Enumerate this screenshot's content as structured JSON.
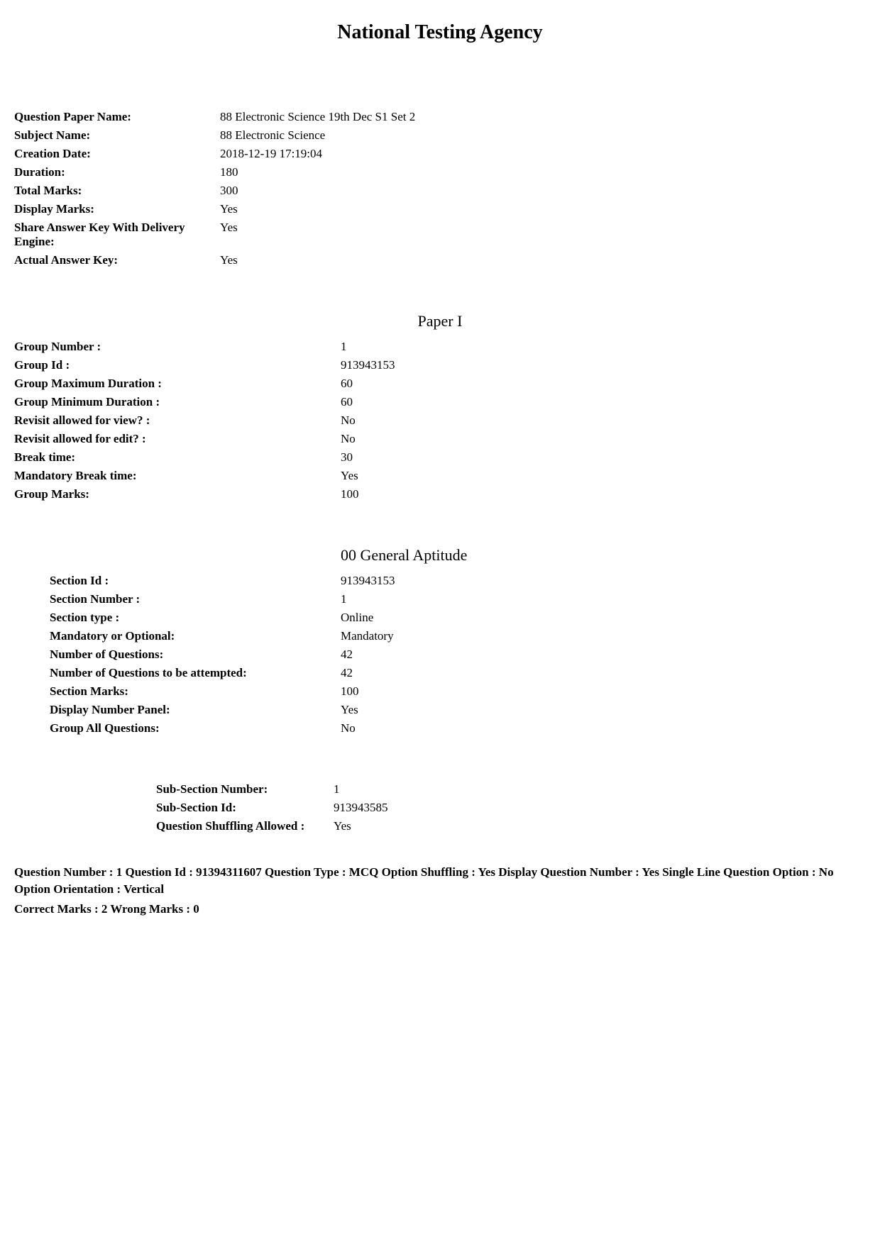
{
  "page_title": "National Testing Agency",
  "paper_info": [
    {
      "label": "Question Paper Name:",
      "value": "88 Electronic Science 19th Dec S1 Set 2"
    },
    {
      "label": "Subject Name:",
      "value": "88 Electronic Science"
    },
    {
      "label": "Creation Date:",
      "value": "2018-12-19 17:19:04"
    },
    {
      "label": "Duration:",
      "value": "180"
    },
    {
      "label": "Total Marks:",
      "value": "300"
    },
    {
      "label": "Display Marks:",
      "value": "Yes"
    },
    {
      "label": "Share Answer Key With Delivery Engine:",
      "value": "Yes"
    },
    {
      "label": "Actual Answer Key:",
      "value": "Yes"
    }
  ],
  "group": {
    "heading": "Paper I",
    "rows": [
      {
        "label": "Group Number :",
        "value": "1"
      },
      {
        "label": "Group Id :",
        "value": "913943153"
      },
      {
        "label": "Group Maximum Duration :",
        "value": "60"
      },
      {
        "label": "Group Minimum Duration :",
        "value": "60"
      },
      {
        "label": "Revisit allowed for view? :",
        "value": "No"
      },
      {
        "label": "Revisit allowed for edit? :",
        "value": "No"
      },
      {
        "label": "Break time:",
        "value": "30"
      },
      {
        "label": "Mandatory Break time:",
        "value": "Yes"
      },
      {
        "label": "Group Marks:",
        "value": "100"
      }
    ]
  },
  "section": {
    "heading": "00 General Aptitude",
    "rows": [
      {
        "label": "Section Id :",
        "value": "913943153"
      },
      {
        "label": "Section Number :",
        "value": "1"
      },
      {
        "label": "Section type :",
        "value": "Online"
      },
      {
        "label": "Mandatory or Optional:",
        "value": "Mandatory"
      },
      {
        "label": "Number of Questions:",
        "value": "42"
      },
      {
        "label": "Number of Questions to be attempted:",
        "value": "42"
      },
      {
        "label": "Section Marks:",
        "value": "100"
      },
      {
        "label": "Display Number Panel:",
        "value": "Yes"
      },
      {
        "label": "Group All Questions:",
        "value": "No"
      }
    ]
  },
  "subsection": {
    "rows": [
      {
        "label": "Sub-Section Number:",
        "value": "1"
      },
      {
        "label": "Sub-Section Id:",
        "value": "913943585"
      },
      {
        "label": "Question Shuffling Allowed :",
        "value": "Yes"
      }
    ]
  },
  "question_meta": "Question Number : 1  Question Id : 91394311607  Question Type : MCQ  Option Shuffling : Yes  Display Question Number : Yes  Single Line Question Option : No  Option Orientation : Vertical",
  "question_marks": "Correct Marks : 2  Wrong Marks : 0"
}
